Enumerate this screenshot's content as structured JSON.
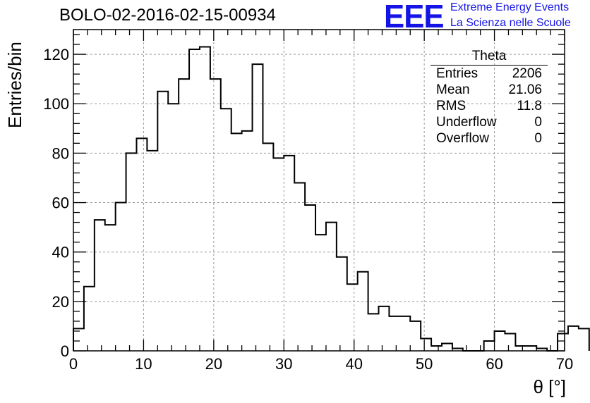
{
  "title": "BOLO-02-2016-02-15-00934",
  "logo": {
    "mark": "EEE",
    "line1": "Extreme Energy Events",
    "line2": "La Scienza nelle Scuole",
    "color": "#1414e6"
  },
  "stats_box": {
    "title": "Theta",
    "rows": [
      {
        "label": "Entries",
        "value": "2206"
      },
      {
        "label": "Mean",
        "value": "21.06"
      },
      {
        "label": "RMS",
        "value": "11.8"
      },
      {
        "label": "Underflow",
        "value": "0"
      },
      {
        "label": "Overflow",
        "value": "0"
      }
    ]
  },
  "chart_data": {
    "type": "bar",
    "histogram": true,
    "title": "BOLO-02-2016-02-15-00934",
    "xlabel": "θ [°]",
    "ylabel": "Entries/bin",
    "xlim": [
      0,
      70
    ],
    "ylim": [
      0,
      130
    ],
    "x_ticks": [
      0,
      10,
      20,
      30,
      40,
      50,
      60,
      70
    ],
    "y_ticks": [
      0,
      20,
      40,
      60,
      80,
      100,
      120
    ],
    "grid": true,
    "bin_width": 1.5,
    "bin_edges_start": 0,
    "values": [
      9,
      26,
      53,
      51,
      60,
      80,
      86,
      81,
      105,
      100,
      110,
      122,
      123,
      110,
      98,
      88,
      89,
      116,
      84,
      78,
      79,
      68,
      59,
      47,
      52,
      38,
      27,
      32,
      15,
      18,
      14,
      14,
      12,
      5,
      2,
      3,
      1,
      0,
      0,
      4,
      8,
      7,
      2,
      2,
      1,
      0,
      7,
      10,
      9
    ],
    "line_color": "#000000"
  }
}
